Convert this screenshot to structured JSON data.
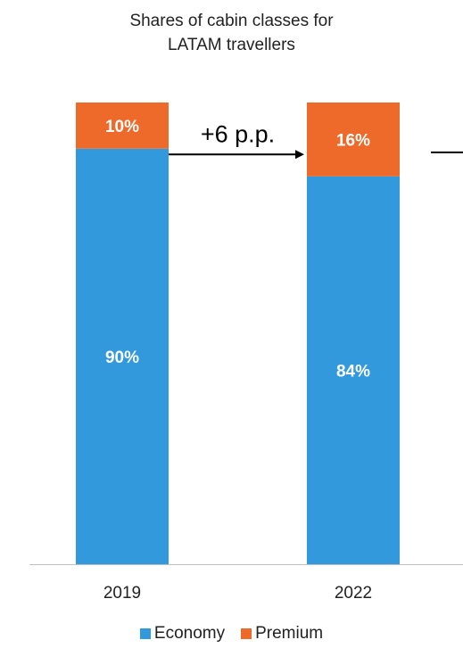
{
  "chart_data": {
    "type": "bar",
    "stacked": true,
    "title_lines": [
      "Shares of cabin classes for",
      "LATAM travellers"
    ],
    "categories": [
      "2019",
      "2022"
    ],
    "series": [
      {
        "name": "Economy",
        "values": [
          90,
          84
        ],
        "labels": [
          "90%",
          "84%"
        ],
        "color": "#3399dd"
      },
      {
        "name": "Premium",
        "values": [
          10,
          16
        ],
        "labels": [
          "10%",
          "16%"
        ],
        "color": "#ee6a2a"
      }
    ],
    "ylim": [
      0,
      100
    ],
    "annotation": "+6 p.p.",
    "legend_position": "bottom",
    "grid": false
  }
}
